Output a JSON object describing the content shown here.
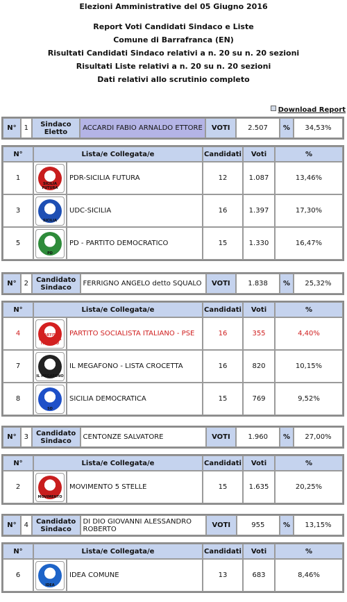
{
  "header": {
    "line1": "Elezioni Amministrative del 05 Giugno 2016",
    "line2": "Report Voti Candidati Sindaco e Liste",
    "line3": "Comune di Barrafranca (EN)",
    "line4": "Risultati Candidati Sindaco relativi a n. 20 su n. 20 sezioni",
    "line5": "Risultati Liste relativi a n. 20 su n. 20 sezioni",
    "line6": "Dati relativi allo scrutinio completo"
  },
  "download_label": "Download Report",
  "labels": {
    "n": "N°",
    "voti": "VOTI",
    "pct": "%",
    "col_n": "N°",
    "col_lista": "Lista/e Collegata/e",
    "col_candidati": "Candidati",
    "col_voti": "Voti",
    "col_pct": "%"
  },
  "candidates": [
    {
      "num": "1",
      "type": "Sindaco Eletto",
      "name": "ACCARDI FABIO ARNALDO ETTORE",
      "votes": "2.507",
      "pct": "34,53%",
      "lists": [
        {
          "num": "1",
          "name": "PDR-SICILIA FUTURA",
          "candidati": "12",
          "voti": "1.087",
          "pct": "13,46%",
          "logo_icon": "pdr-sicilia-futura-logo",
          "logo_text": "SICILIA FUTURA",
          "logo_color": "#c81e1e"
        },
        {
          "num": "3",
          "name": "UDC-SICILIA",
          "candidati": "16",
          "voti": "1.397",
          "pct": "17,30%",
          "logo_icon": "udc-sicilia-logo",
          "logo_text": "SICILIA",
          "logo_color": "#1e4fb4"
        },
        {
          "num": "5",
          "name": "PD - PARTITO DEMOCRATICO",
          "candidati": "15",
          "voti": "1.330",
          "pct": "16,47%",
          "logo_icon": "pd-logo",
          "logo_text": "PD",
          "logo_color": "#2e8b3a"
        }
      ]
    },
    {
      "num": "2",
      "type": "Candidato Sindaco",
      "name": "FERRIGNO ANGELO detto SQUALO",
      "votes": "1.838",
      "pct": "25,32%",
      "lists": [
        {
          "num": "4",
          "name": "PARTITO SOCIALISTA ITALIANO - PSE",
          "candidati": "16",
          "voti": "355",
          "pct": "4,40%",
          "logo_icon": "psi-logo",
          "logo_text": "PARTITO SOCIALISTA ITALIANO",
          "logo_color": "#d42020",
          "highlight": true
        },
        {
          "num": "7",
          "name": "IL MEGAFONO - LISTA CROCETTA",
          "candidati": "16",
          "voti": "820",
          "pct": "10,15%",
          "logo_icon": "megafono-logo",
          "logo_text": "IL MEGAFONO",
          "logo_color": "#222222"
        },
        {
          "num": "8",
          "name": "SICILIA DEMOCRATICA",
          "candidati": "15",
          "voti": "769",
          "pct": "9,52%",
          "logo_icon": "sicilia-democratica-logo",
          "logo_text": "SD",
          "logo_color": "#1e50c8"
        }
      ]
    },
    {
      "num": "3",
      "type": "Candidato Sindaco",
      "name": "CENTONZE SALVATORE",
      "votes": "1.960",
      "pct": "27,00%",
      "lists": [
        {
          "num": "2",
          "name": "MOVIMENTO 5 STELLE",
          "candidati": "15",
          "voti": "1.635",
          "pct": "20,25%",
          "logo_icon": "movimento-5-stelle-logo",
          "logo_text": "MOVIMENTO",
          "logo_color": "#c81e1e"
        }
      ]
    },
    {
      "num": "4",
      "type": "Candidato Sindaco",
      "name": "DI DIO GIOVANNI ALESSANDRO ROBERTO",
      "votes": "955",
      "pct": "13,15%",
      "lists": [
        {
          "num": "6",
          "name": "IDEA COMUNE",
          "candidati": "13",
          "voti": "683",
          "pct": "8,46%",
          "logo_icon": "idea-comune-logo",
          "logo_text": "IDEA",
          "logo_color": "#1e64c8"
        }
      ]
    }
  ]
}
